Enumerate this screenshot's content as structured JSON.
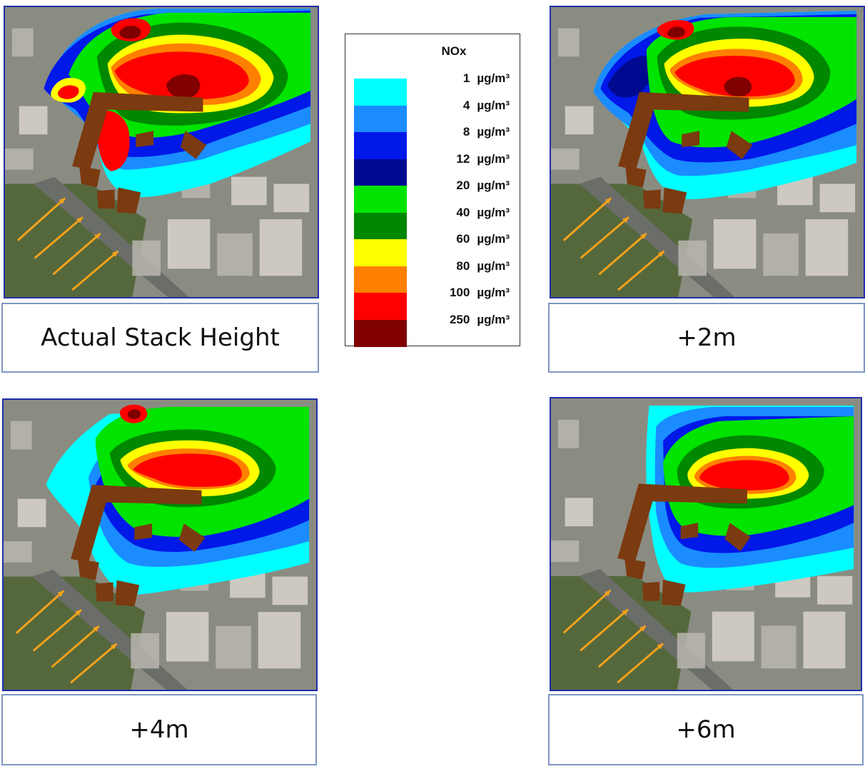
{
  "legend": {
    "title": "NOx",
    "unit": "µg/m³",
    "entries": [
      {
        "value": "1",
        "color": "#00ffff"
      },
      {
        "value": "4",
        "color": "#1a8cff"
      },
      {
        "value": "8",
        "color": "#0018e8"
      },
      {
        "value": "12",
        "color": "#000a90"
      },
      {
        "value": "20",
        "color": "#00e400"
      },
      {
        "value": "40",
        "color": "#008800"
      },
      {
        "value": "60",
        "color": "#ffff00"
      },
      {
        "value": "80",
        "color": "#ff8000"
      },
      {
        "value": "100",
        "color": "#ff0000"
      },
      {
        "value": "250",
        "color": "#800000"
      }
    ]
  },
  "panels": [
    {
      "caption": "Actual Stack Height"
    },
    {
      "caption": "+2m"
    },
    {
      "caption": "+4m"
    },
    {
      "caption": "+6m"
    }
  ],
  "colors": {
    "map_border": "#1f2fa8",
    "caption_border": "#7f96c4",
    "building": "#7b3a10",
    "wind_arrow": "#f5a21a"
  },
  "icons": [
    "wind-arrow-icon"
  ]
}
